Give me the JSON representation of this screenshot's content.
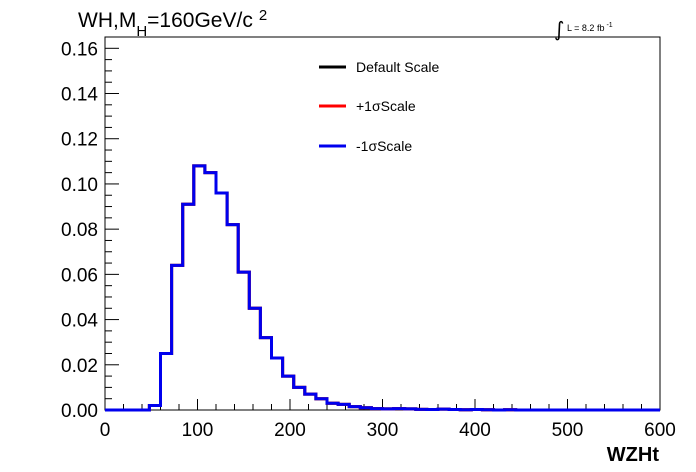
{
  "chart_data": {
    "type": "line",
    "title_parts": {
      "main": "WH,M",
      "sub": "H",
      "rest": "=160GeV/c",
      "sup": "2"
    },
    "luminosity": {
      "symbol": "∫",
      "text": "L = 8.2 fb",
      "sup": "-1"
    },
    "xlabel": "WZHt",
    "ylabel": "",
    "xlim": [
      0,
      600
    ],
    "ylim": [
      0,
      0.165
    ],
    "x_ticks": [
      "0",
      "100",
      "200",
      "300",
      "400",
      "500",
      "600"
    ],
    "y_ticks": [
      "0.00",
      "0.02",
      "0.04",
      "0.06",
      "0.08",
      "0.10",
      "0.12",
      "0.14",
      "0.16"
    ],
    "bin_edges": [
      0,
      12,
      24,
      36,
      48,
      60,
      72,
      84,
      96,
      108,
      120,
      132,
      144,
      156,
      168,
      180,
      192,
      204,
      216,
      228,
      240,
      252,
      264,
      276,
      288,
      300,
      312,
      324,
      336,
      348,
      360,
      372,
      384,
      396,
      408,
      420,
      432,
      444,
      456,
      468,
      480,
      492,
      504,
      516,
      528,
      540,
      552,
      564,
      576,
      588,
      600
    ],
    "legend_position": "top-center",
    "series": [
      {
        "name": "Default Scale",
        "color": "#000000",
        "values": [
          0,
          0,
          0,
          0,
          0.002,
          0.025,
          0.064,
          0.091,
          0.108,
          0.105,
          0.096,
          0.082,
          0.061,
          0.045,
          0.032,
          0.023,
          0.015,
          0.01,
          0.007,
          0.005,
          0.003,
          0.0025,
          0.0015,
          0.001,
          0.0006,
          0.0005,
          0.0006,
          0.0005,
          0.0003,
          0.0002,
          0.0004,
          0.0002,
          0.0001,
          0.0002,
          0.0001,
          0,
          0.0001,
          0,
          0,
          0,
          0,
          0,
          0,
          0,
          0,
          0,
          0,
          0,
          0,
          0
        ]
      },
      {
        "name": "+1σScale",
        "color": "#ff0000",
        "values": [
          0,
          0,
          0,
          0,
          0.002,
          0.025,
          0.064,
          0.091,
          0.108,
          0.105,
          0.096,
          0.082,
          0.061,
          0.045,
          0.032,
          0.023,
          0.015,
          0.01,
          0.007,
          0.005,
          0.003,
          0.0025,
          0.0015,
          0.001,
          0.0006,
          0.0005,
          0.0006,
          0.0005,
          0.0003,
          0.0002,
          0.0004,
          0.0002,
          0.0001,
          0.0002,
          0.0001,
          0,
          0.0001,
          0,
          0,
          0,
          0,
          0,
          0,
          0,
          0,
          0,
          0,
          0,
          0,
          0
        ]
      },
      {
        "name": "-1σScale",
        "color": "#0000ee",
        "values": [
          0,
          0,
          0,
          0,
          0.002,
          0.025,
          0.064,
          0.091,
          0.108,
          0.105,
          0.096,
          0.082,
          0.061,
          0.045,
          0.032,
          0.023,
          0.015,
          0.01,
          0.007,
          0.005,
          0.003,
          0.0025,
          0.0015,
          0.001,
          0.0006,
          0.0005,
          0.0006,
          0.0005,
          0.0003,
          0.0002,
          0.0004,
          0.0002,
          0.0001,
          0.0002,
          0.0001,
          0,
          0.0001,
          0,
          0,
          0,
          0,
          0,
          0,
          0,
          0,
          0,
          0,
          0,
          0,
          0
        ]
      }
    ]
  }
}
